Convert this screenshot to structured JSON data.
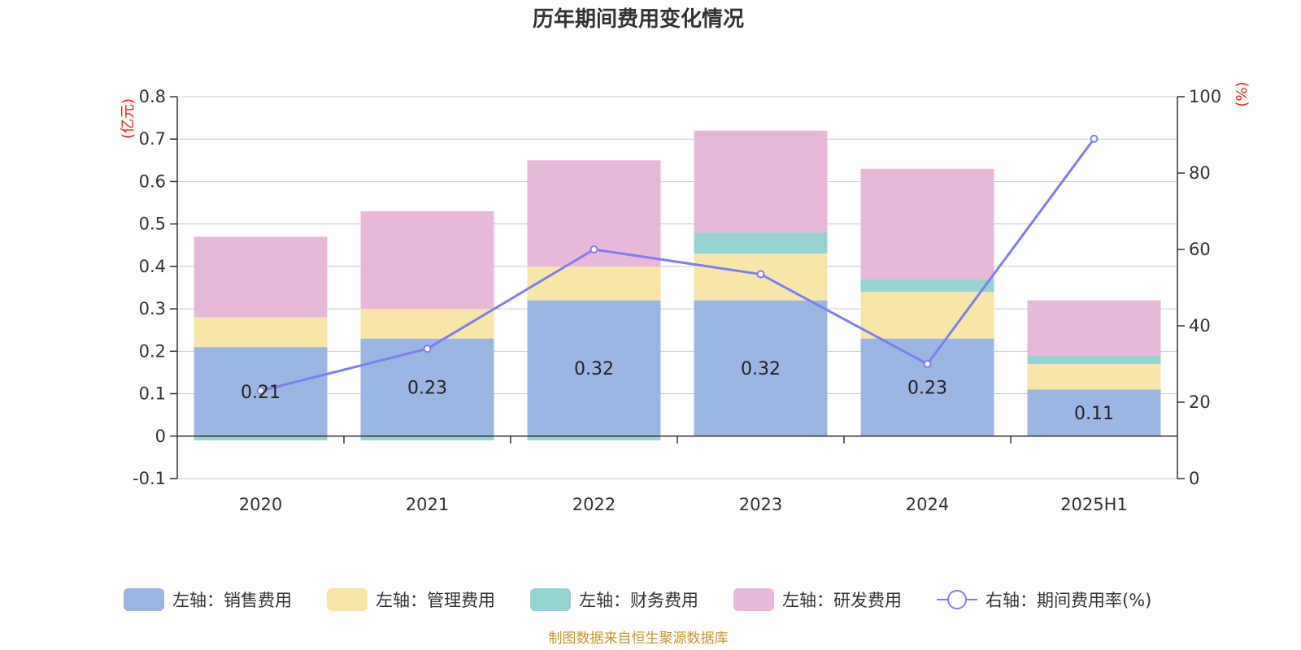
{
  "chart_data": {
    "type": "bar",
    "title": "历年期间费用变化情况",
    "categories": [
      "2020",
      "2021",
      "2022",
      "2023",
      "2024",
      "2025H1"
    ],
    "stacked": true,
    "left_axis": {
      "unit": "(亿元)",
      "ylim": [
        -0.1,
        0.8
      ],
      "ticks": [
        -0.1,
        0,
        0.1,
        0.2,
        0.3,
        0.4,
        0.5,
        0.6,
        0.7,
        0.8
      ],
      "tick_labels": [
        "-0.1",
        "0",
        "0.1",
        "0.2",
        "0.3",
        "0.4",
        "0.5",
        "0.6",
        "0.7",
        "0.8"
      ]
    },
    "right_axis": {
      "unit": "(%)",
      "ylim": [
        0,
        100
      ],
      "ticks": [
        0,
        20,
        40,
        60,
        80,
        100
      ],
      "tick_labels": [
        "0",
        "20",
        "40",
        "60",
        "80",
        "100"
      ]
    },
    "series": [
      {
        "name": "左轴：销售费用",
        "axis": "left",
        "kind": "bar",
        "color": "#9bb7e1",
        "values": [
          0.21,
          0.23,
          0.32,
          0.32,
          0.23,
          0.11
        ],
        "labels": [
          "0.21",
          "0.23",
          "0.32",
          "0.32",
          "0.23",
          "0.11"
        ]
      },
      {
        "name": "左轴：管理费用",
        "axis": "left",
        "kind": "bar",
        "color": "#f8e6a8",
        "values": [
          0.07,
          0.07,
          0.08,
          0.11,
          0.11,
          0.06
        ]
      },
      {
        "name": "左轴：财务费用",
        "axis": "left",
        "kind": "bar",
        "color": "#96d3d3",
        "values": [
          -0.01,
          -0.01,
          -0.01,
          0.05,
          0.03,
          0.02
        ]
      },
      {
        "name": "左轴：研发费用",
        "axis": "left",
        "kind": "bar",
        "color": "#e8b8d9",
        "values": [
          0.19,
          0.23,
          0.25,
          0.24,
          0.26,
          0.13
        ]
      },
      {
        "name": "右轴：期间费用率(%)",
        "axis": "right",
        "kind": "line",
        "color": "#7b7ff0",
        "values": [
          23,
          34,
          60,
          53.5,
          30,
          89
        ]
      }
    ],
    "grid": true,
    "legend": "bottom",
    "source": "制图数据来自恒生聚源数据库"
  }
}
